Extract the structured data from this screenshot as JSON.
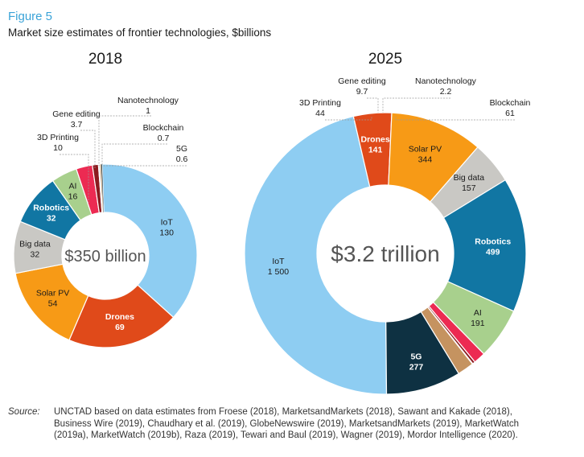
{
  "figure_label": "Figure 5",
  "figure_title": "Market size estimates of frontier technologies, $billions",
  "source_label": "Source:",
  "source_text": "UNCTAD based on data estimates from Froese (2018), MarketsandMarkets (2018), Sawant and Kakade (2018), Business Wire (2019), Chaudhary et al. (2019), GlobeNewswire (2019), MarketsandMarkets (2019), MarketWatch (2019a), MarketWatch (2019b), Raza (2019), Tewari and Baul (2019), Wagner (2019), Mordor Intelligence (2020).",
  "colors": {
    "IoT": "#8ecdf2",
    "Drones": "#e04a1a",
    "Solar PV": "#f79a16",
    "Big data": "#c9c8c4",
    "Robotics": "#1176a3",
    "AI": "#a8d08d",
    "3D Printing": "#ec2a52",
    "Gene editing": "#8c1a1f",
    "Nanotechnology": "#e0e0e0",
    "Blockchain": "#c59360",
    "5G": "#0e3142"
  },
  "chart_data": [
    {
      "type": "pie",
      "variant": "donut",
      "title": "2018",
      "center_label": "$350 billion",
      "unit": "$billions",
      "categories": [
        "IoT",
        "Drones",
        "Solar PV",
        "Big data",
        "Robotics",
        "AI",
        "3D Printing",
        "Gene editing",
        "Nanotechnology",
        "Blockchain",
        "5G"
      ],
      "values": [
        130,
        69,
        54,
        32,
        32,
        16,
        10,
        3.7,
        1,
        0.7,
        0.6
      ],
      "value_labels": [
        "130",
        "69",
        "54",
        "32",
        "32",
        "16",
        "10",
        "3.7",
        "1",
        "0.7",
        "0.6"
      ]
    },
    {
      "type": "pie",
      "variant": "donut",
      "title": "2025",
      "center_label": "$3.2 trillion",
      "unit": "$billions",
      "categories": [
        "IoT",
        "Drones",
        "Solar PV",
        "Big data",
        "Robotics",
        "AI",
        "3D Printing",
        "Gene editing",
        "Nanotechnology",
        "Blockchain",
        "5G"
      ],
      "values": [
        1500,
        141,
        344,
        157,
        499,
        191,
        44,
        9.7,
        2.2,
        61,
        277
      ],
      "value_labels": [
        "1 500",
        "141",
        "344",
        "157",
        "499",
        "191",
        "44",
        "9.7",
        "2.2",
        "61",
        "277"
      ]
    }
  ]
}
